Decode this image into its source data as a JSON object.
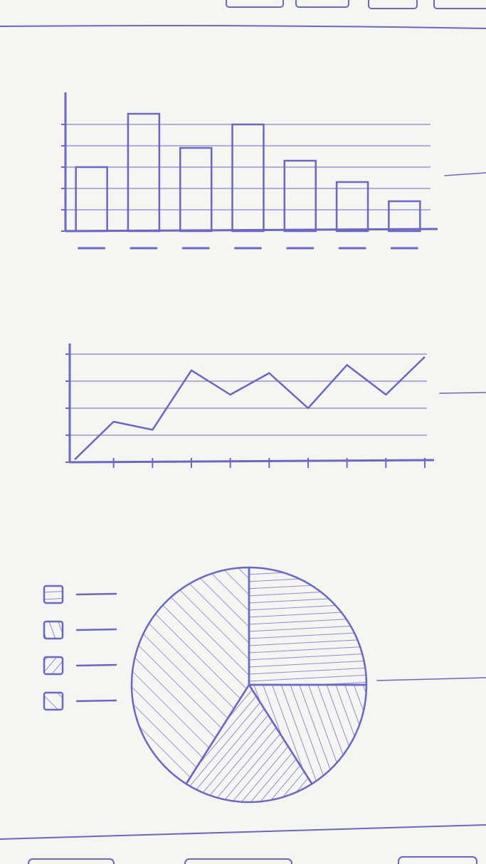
{
  "chart_data": [
    {
      "type": "bar",
      "categories": [
        null,
        null,
        null,
        null,
        null,
        null,
        null
      ],
      "values": [
        3,
        5.5,
        3.9,
        5,
        3.3,
        2.3,
        1.4
      ],
      "color": "#6b66c9",
      "ylim": [
        0,
        6
      ],
      "yticks": [
        0,
        1,
        2,
        3,
        4,
        5
      ],
      "grid": true
    },
    {
      "type": "line",
      "categories": [
        null,
        null,
        null,
        null,
        null,
        null,
        null,
        null,
        null,
        null
      ],
      "values": [
        0.1,
        1.5,
        1.2,
        3.4,
        2.5,
        3.3,
        2,
        3.6,
        2.5,
        3.9
      ],
      "color": "#6b66c9",
      "ylim": [
        0,
        4
      ],
      "yticks": [
        0,
        1,
        2,
        3,
        4
      ],
      "grid": true
    },
    {
      "type": "pie",
      "values": [
        25,
        16,
        18,
        41
      ],
      "color": "#6b66c9",
      "legend": "left"
    }
  ]
}
